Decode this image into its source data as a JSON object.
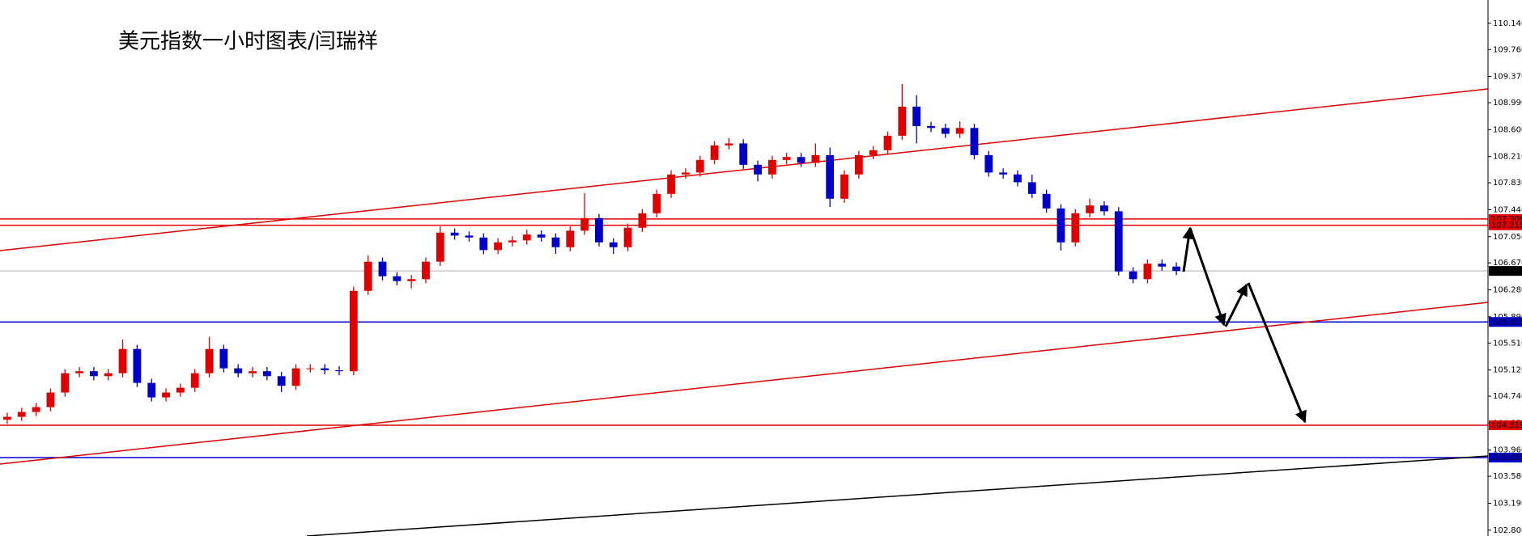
{
  "chart_data": {
    "type": "candlestick",
    "title": "美元指数一小时图表/闫瑞祥",
    "ylim": [
      102.716,
      110.477
    ],
    "yticks": [
      {
        "value": 110.14,
        "label": "110.140"
      },
      {
        "value": 109.76,
        "label": "109.760"
      },
      {
        "value": 109.37,
        "label": "109.370"
      },
      {
        "value": 108.99,
        "label": "108.990"
      },
      {
        "value": 108.6,
        "label": "108.600"
      },
      {
        "value": 108.21,
        "label": "108.210"
      },
      {
        "value": 107.83,
        "label": "107.830"
      },
      {
        "value": 107.44,
        "label": "107.440"
      },
      {
        "value": 107.05,
        "label": "107.050"
      },
      {
        "value": 106.67,
        "label": "106.670"
      },
      {
        "value": 106.28,
        "label": "106.280"
      },
      {
        "value": 105.89,
        "label": "105.890"
      },
      {
        "value": 105.51,
        "label": "105.510"
      },
      {
        "value": 105.12,
        "label": "105.120"
      },
      {
        "value": 104.74,
        "label": "104.740"
      },
      {
        "value": 104.35,
        "label": "104.350"
      },
      {
        "value": 103.96,
        "label": "103.960"
      },
      {
        "value": 103.58,
        "label": "103.580"
      },
      {
        "value": 103.19,
        "label": "103.190"
      },
      {
        "value": 102.8,
        "label": "102.800"
      }
    ],
    "up_color": "#e00000",
    "down_color": "#0000c8",
    "levels": [
      {
        "value": 107.306,
        "color": "#e00000",
        "label_fill": "#e00000",
        "label_color": "#ffffff"
      },
      {
        "value": 107.215,
        "color": "#e00000",
        "label_fill": "#e00000",
        "label_color": "#ffffff"
      },
      {
        "value": 106.554,
        "color": "#c8c8c8",
        "label_fill": "#000000",
        "label_color": "#ffffff"
      },
      {
        "value": 105.815,
        "color": "#0000c8",
        "label_fill": "#0000c8",
        "label_color": "#ffffff"
      },
      {
        "value": 104.319,
        "color": "#e00000",
        "label_fill": "#e00000",
        "label_color": "#ffffff"
      },
      {
        "value": 103.851,
        "color": "#0000c8",
        "label_fill": "#0000c8",
        "label_color": "#ffffff"
      }
    ],
    "open": [
      104.4,
      104.442,
      104.512,
      104.582,
      104.793,
      105.073,
      105.102,
      105.031,
      105.073,
      105.424,
      104.933,
      104.723,
      104.793,
      104.863,
      105.073,
      105.424,
      105.144,
      105.073,
      105.102,
      105.031,
      104.891,
      105.144,
      105.144,
      105.116,
      105.102,
      106.266,
      106.688,
      106.477,
      106.407,
      106.435,
      106.688,
      107.109,
      107.066,
      107.038,
      106.856,
      106.968,
      106.996,
      107.081,
      107.038,
      106.898,
      107.137,
      107.319,
      106.968,
      106.898,
      107.179,
      107.389,
      107.67,
      107.951,
      107.979,
      108.161,
      108.372,
      108.4,
      108.091,
      107.951,
      108.161,
      108.203,
      108.119,
      108.231,
      107.6,
      107.951,
      108.231,
      108.302,
      108.512,
      108.933,
      108.652,
      108.624,
      108.54,
      108.624,
      108.231,
      107.979,
      107.951,
      107.838,
      107.67,
      107.459,
      106.968,
      107.389,
      107.502,
      107.417,
      106.547,
      106.435,
      106.659,
      106.617
    ],
    "high": [
      104.502,
      104.572,
      104.642,
      104.853,
      105.133,
      105.162,
      105.162,
      105.133,
      105.56,
      105.484,
      104.993,
      104.853,
      104.923,
      105.133,
      105.6,
      105.484,
      105.204,
      105.162,
      105.162,
      105.091,
      105.204,
      105.204,
      105.204,
      105.176,
      106.326,
      106.78,
      106.748,
      106.537,
      106.495,
      106.748,
      107.2,
      107.169,
      107.126,
      107.098,
      107.028,
      107.056,
      107.15,
      107.141,
      107.098,
      107.197,
      107.68,
      107.379,
      107.028,
      107.239,
      107.449,
      107.73,
      108.011,
      108.039,
      108.221,
      108.432,
      108.48,
      108.46,
      108.151,
      108.221,
      108.263,
      108.263,
      108.4,
      108.34,
      108.011,
      108.291,
      108.362,
      108.572,
      109.26,
      109.1,
      108.712,
      108.684,
      108.72,
      108.684,
      108.291,
      108.039,
      108.011,
      107.95,
      107.73,
      107.519,
      107.449,
      107.6,
      107.562,
      107.477,
      106.607,
      106.719,
      106.719,
      106.677
    ],
    "low": [
      104.34,
      104.382,
      104.452,
      104.522,
      104.733,
      105.013,
      104.971,
      104.971,
      105.013,
      104.873,
      104.663,
      104.663,
      104.733,
      104.803,
      105.013,
      105.084,
      105.013,
      105.013,
      104.971,
      104.8,
      104.831,
      105.084,
      105.056,
      105.042,
      105.042,
      106.206,
      106.417,
      106.347,
      106.3,
      106.375,
      106.628,
      107.006,
      106.978,
      106.796,
      106.796,
      106.908,
      106.936,
      106.978,
      106.8,
      106.838,
      107.077,
      106.908,
      106.8,
      106.838,
      107.119,
      107.329,
      107.61,
      107.891,
      107.919,
      108.101,
      108.312,
      108.031,
      107.85,
      107.891,
      108.101,
      108.059,
      108.059,
      107.48,
      107.54,
      107.891,
      108.171,
      108.242,
      108.452,
      108.4,
      108.564,
      108.48,
      108.48,
      108.171,
      107.919,
      107.891,
      107.778,
      107.61,
      107.399,
      106.85,
      106.908,
      107.329,
      107.357,
      106.487,
      106.375,
      106.375,
      106.557,
      106.494
    ],
    "close": [
      104.442,
      104.512,
      104.582,
      104.793,
      105.073,
      105.102,
      105.031,
      105.073,
      105.424,
      104.933,
      104.723,
      104.793,
      104.863,
      105.073,
      105.424,
      105.144,
      105.073,
      105.102,
      105.031,
      104.891,
      105.144,
      105.144,
      105.116,
      105.102,
      106.266,
      106.688,
      106.477,
      106.407,
      106.435,
      106.688,
      107.109,
      107.066,
      107.038,
      106.856,
      106.968,
      106.996,
      107.081,
      107.038,
      106.898,
      107.137,
      107.319,
      106.968,
      106.898,
      107.179,
      107.389,
      107.67,
      107.951,
      107.979,
      108.161,
      108.372,
      108.4,
      108.091,
      107.951,
      108.161,
      108.203,
      108.119,
      108.231,
      107.6,
      107.951,
      108.231,
      108.302,
      108.512,
      108.933,
      108.652,
      108.624,
      108.54,
      108.624,
      108.231,
      107.979,
      107.951,
      107.838,
      107.67,
      107.459,
      106.968,
      107.389,
      107.502,
      107.417,
      106.547,
      106.435,
      106.659,
      106.617,
      106.554
    ]
  }
}
